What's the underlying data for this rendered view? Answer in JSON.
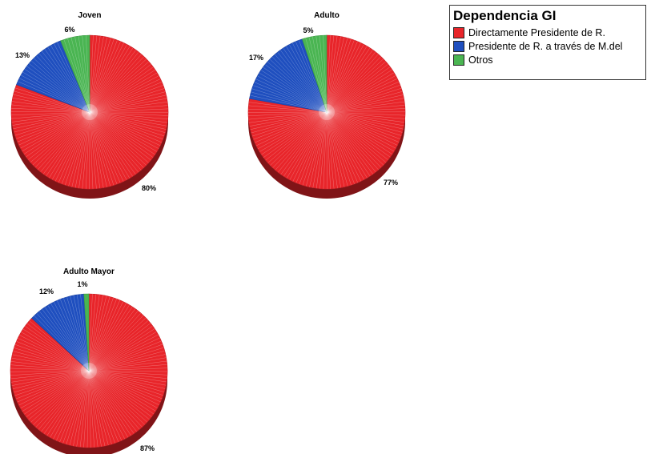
{
  "legend": {
    "title": "Dependencia GI",
    "items": [
      {
        "label": "Directamente Presidente de R.",
        "color": "#e8252a"
      },
      {
        "label": "Presidente de R. a través de M.del",
        "color": "#1f4fbf"
      },
      {
        "label": "Otros",
        "color": "#4ab552"
      }
    ]
  },
  "chart_data": [
    {
      "type": "pie",
      "title": "Joven",
      "categories": [
        "Directamente Presidente de R.",
        "Presidente de R. a través de M.del",
        "Otros"
      ],
      "values": [
        80,
        13,
        6
      ],
      "labels": [
        "80%",
        "13%",
        "6%"
      ]
    },
    {
      "type": "pie",
      "title": "Adulto",
      "categories": [
        "Directamente Presidente de R.",
        "Presidente de R. a través de M.del",
        "Otros"
      ],
      "values": [
        77,
        17,
        5
      ],
      "labels": [
        "77%",
        "17%",
        "5%"
      ]
    },
    {
      "type": "pie",
      "title": "Adulto Mayor",
      "categories": [
        "Directamente Presidente de R.",
        "Presidente de R. a través de M.del",
        "Otros"
      ],
      "values": [
        87,
        12,
        1
      ],
      "labels": [
        "87%",
        "12%",
        "1%"
      ]
    }
  ]
}
